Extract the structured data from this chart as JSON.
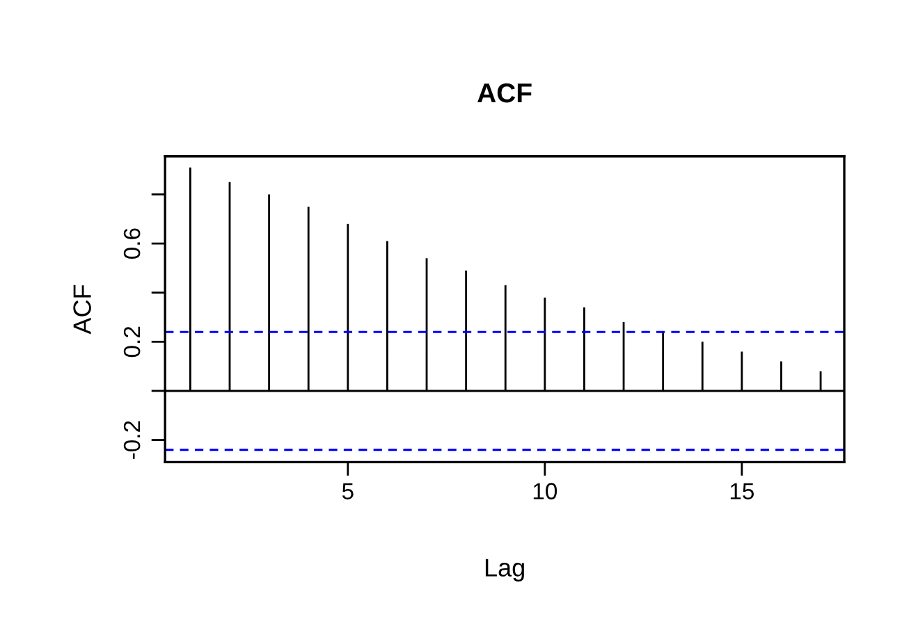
{
  "chart_data": {
    "type": "bar",
    "title": "ACF",
    "xlabel": "Lag",
    "ylabel": "ACF",
    "x": [
      1,
      2,
      3,
      4,
      5,
      6,
      7,
      8,
      9,
      10,
      11,
      12,
      13,
      14,
      15,
      16,
      17
    ],
    "values": [
      0.91,
      0.85,
      0.8,
      0.75,
      0.68,
      0.61,
      0.54,
      0.49,
      0.43,
      0.38,
      0.34,
      0.28,
      0.24,
      0.2,
      0.16,
      0.12,
      0.08
    ],
    "color": "#000000",
    "xlim": [
      0.36,
      17.6
    ],
    "xticks": [
      5,
      10,
      15
    ],
    "ylim": [
      -0.29,
      0.955
    ],
    "yticks": [
      -0.2,
      {
        "value": 0,
        "label": null
      },
      0.2,
      {
        "value": 0.4,
        "label": null
      },
      0.6,
      {
        "value": 0.8,
        "label": null
      }
    ],
    "ref_lines": [
      {
        "axis": "y",
        "value": 0,
        "color": "#000000",
        "line_style": "solid"
      },
      {
        "axis": "y",
        "value": 0.24,
        "color": "#0000ff",
        "line_style": "dashed"
      },
      {
        "axis": "y",
        "value": -0.24,
        "color": "#0000ff",
        "line_style": "dashed"
      }
    ],
    "grid": false,
    "legend": false
  }
}
